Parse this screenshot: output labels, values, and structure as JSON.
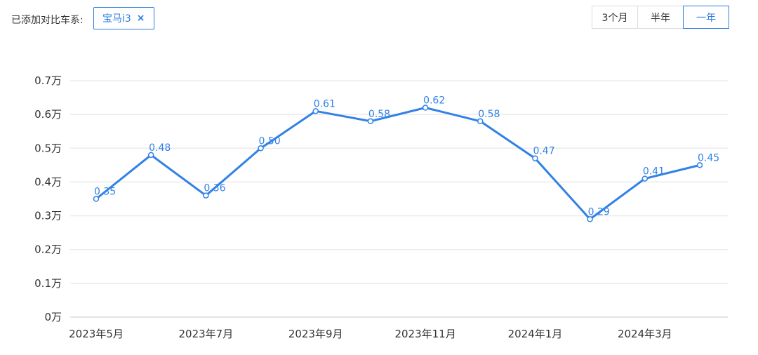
{
  "header": {
    "label": "已添加对比车系:",
    "tag": {
      "name": "宝马i3",
      "close": "×"
    },
    "range_buttons": [
      {
        "label": "3个月",
        "active": false
      },
      {
        "label": "半年",
        "active": false
      },
      {
        "label": "一年",
        "active": true
      }
    ]
  },
  "colors": {
    "accent": "#2b7ce0",
    "line": "#3181e6",
    "text": "#333333",
    "grid": "#ebebeb",
    "axis": "#dcdcdc"
  },
  "chart_data": {
    "type": "line",
    "series": [
      {
        "name": "宝马i3",
        "values": [
          0.35,
          0.48,
          0.36,
          0.5,
          0.61,
          0.58,
          0.62,
          0.58,
          0.47,
          0.29,
          0.41,
          0.45
        ],
        "point_labels": [
          "0.35",
          "0.48",
          "0.36",
          "0.50",
          "0.61",
          "0.58",
          "0.62",
          "0.58",
          "0.47",
          "0.29",
          "0.41",
          "0.45"
        ]
      }
    ],
    "x_tick_labels": [
      "2023年5月",
      "2023年7月",
      "2023年9月",
      "2023年11月",
      "2024年1月",
      "2024年3月"
    ],
    "x_tick_indices": [
      0,
      2,
      4,
      6,
      8,
      10
    ],
    "y_tick_labels": [
      "0万",
      "0.1万",
      "0.2万",
      "0.3万",
      "0.4万",
      "0.5万",
      "0.6万",
      "0.7万"
    ],
    "ylim": [
      0,
      0.7
    ],
    "ylabel_unit": "万",
    "grid": true,
    "legend": "none",
    "title": ""
  }
}
